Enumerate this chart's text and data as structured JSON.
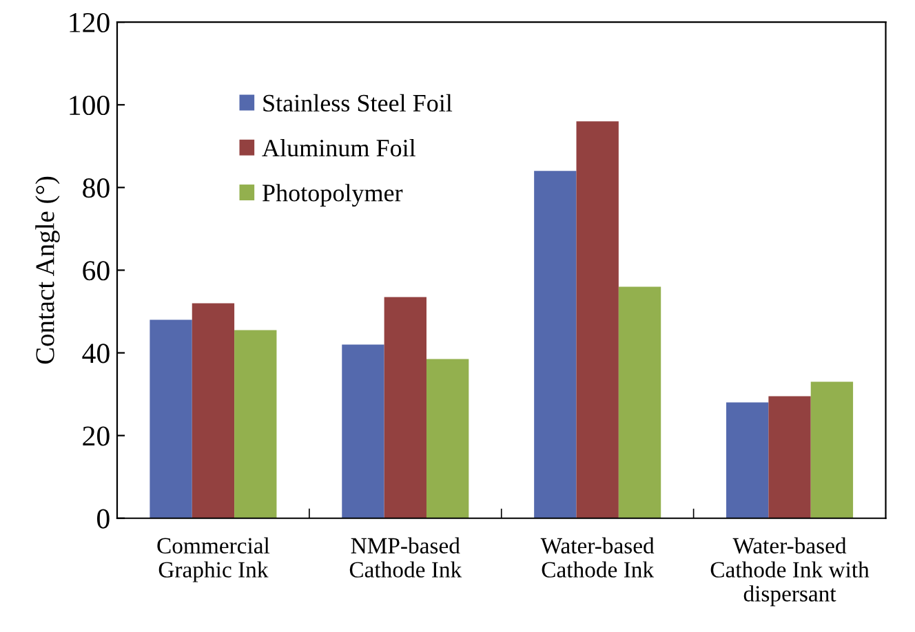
{
  "chart_data": {
    "type": "bar",
    "ylabel": "Contact Angle (°)",
    "categories": [
      "Commercial\nGraphic Ink",
      "NMP-based\nCathode Ink",
      "Water-based\nCathode Ink",
      "Water-based\nCathode Ink with\ndispersant"
    ],
    "series": [
      {
        "name": "Stainless Steel Foil",
        "color": "#5469ad",
        "values": [
          48,
          42,
          84,
          28
        ]
      },
      {
        "name": "Aluminum Foil",
        "color": "#934140",
        "values": [
          52,
          53.5,
          96,
          29.5
        ]
      },
      {
        "name": "Photopolymer",
        "color": "#93b04e",
        "values": [
          45.5,
          38.5,
          56,
          33
        ]
      }
    ],
    "ylim": [
      0,
      120
    ],
    "yticks": [
      0,
      20,
      40,
      60,
      80,
      100,
      120
    ],
    "grid": false,
    "legend": "top left"
  }
}
